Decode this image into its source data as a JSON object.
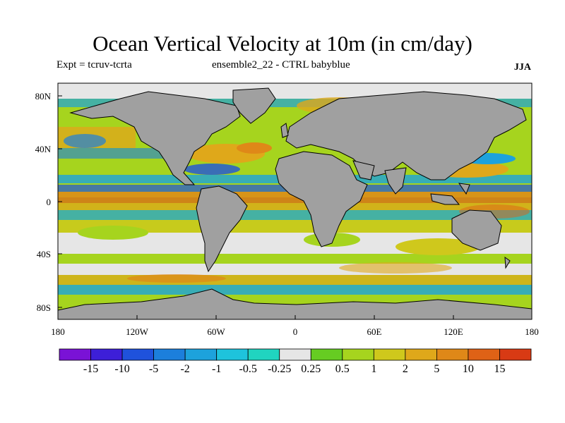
{
  "title": "Ocean Vertical Velocity at 10m (in cm/day)",
  "subtitle_left": "Expt = tcruv-tcrta",
  "subtitle_center": "ensemble2_22 - CTRL babyblue",
  "season": "JJA",
  "lat_ticks": [
    "80N",
    "40N",
    "0",
    "40S",
    "80S"
  ],
  "lon_ticks": [
    "180",
    "120W",
    "60W",
    "0",
    "60E",
    "120E",
    "180"
  ],
  "colorbar": {
    "colors": [
      "#7a12d6",
      "#3d1fd8",
      "#1f52dc",
      "#1c7fdc",
      "#1da2dc",
      "#1ec3dc",
      "#20d4c0",
      "#e6e6e6",
      "#66cc22",
      "#a6d41e",
      "#cfc81c",
      "#dfa81a",
      "#df8818",
      "#df6216",
      "#d83a14"
    ],
    "labels": [
      "-15",
      "-10",
      "-5",
      "-2",
      "-1",
      "-0.5",
      "-0.25",
      "0.25",
      "0.5",
      "1",
      "2",
      "5",
      "10",
      "15"
    ]
  }
}
